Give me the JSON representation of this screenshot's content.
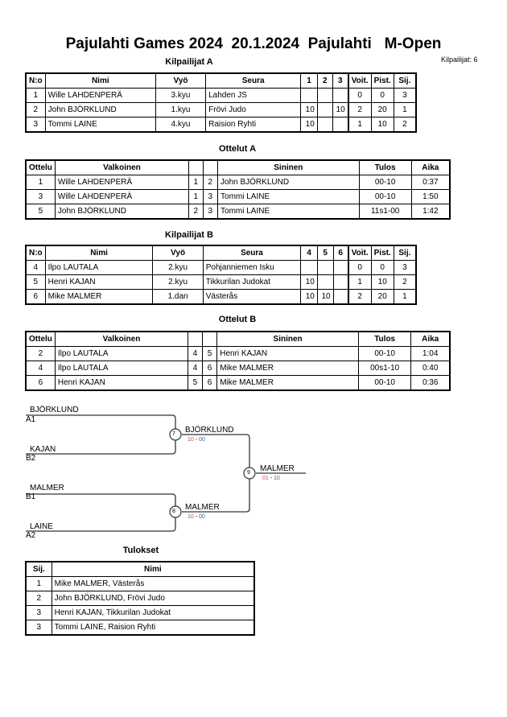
{
  "title": "Pajulahti Games 2024  20.1.2024  Pajulahti   M-Open",
  "competitor_count": "Kilpailijat: 6",
  "pool_a": {
    "title": "Kilpailijat A",
    "headers": [
      "N:o",
      "Nimi",
      "Vyö",
      "Seura",
      "1",
      "2",
      "3",
      "Voit.",
      "Pist.",
      "Sij."
    ],
    "rows": [
      [
        "1",
        "Wille LAHDENPERÄ",
        "3.kyu",
        "Lahden JS",
        "",
        "",
        "",
        "0",
        "0",
        "3"
      ],
      [
        "2",
        "John BJÖRKLUND",
        "1.kyu",
        "Frövi Judo",
        "10",
        "",
        "10",
        "2",
        "20",
        "1"
      ],
      [
        "3",
        "Tommi LAINE",
        "4.kyu",
        "Raision Ryhti",
        "10",
        "",
        "",
        "1",
        "10",
        "2"
      ]
    ]
  },
  "matches_a": {
    "title": "Ottelut A",
    "headers": [
      "Ottelu",
      "Valkoinen",
      "",
      "",
      "Sininen",
      "Tulos",
      "Aika"
    ],
    "rows": [
      [
        "1",
        "Wille LAHDENPERÄ",
        "1",
        "2",
        "John BJÖRKLUND",
        "00-10",
        "0:37"
      ],
      [
        "3",
        "Wille LAHDENPERÄ",
        "1",
        "3",
        "Tommi LAINE",
        "00-10",
        "1:50"
      ],
      [
        "5",
        "John BJÖRKLUND",
        "2",
        "3",
        "Tommi LAINE",
        "11s1-00",
        "1:42"
      ]
    ]
  },
  "pool_b": {
    "title": "Kilpailijat B",
    "headers": [
      "N:o",
      "Nimi",
      "Vyö",
      "Seura",
      "4",
      "5",
      "6",
      "Voit.",
      "Pist.",
      "Sij."
    ],
    "rows": [
      [
        "4",
        "Ilpo LAUTALA",
        "2.kyu",
        "Pohjanniemen Isku",
        "",
        "",
        "",
        "0",
        "0",
        "3"
      ],
      [
        "5",
        "Henri KAJAN",
        "2.kyu",
        "Tikkurilan Judokat",
        "10",
        "",
        "",
        "1",
        "10",
        "2"
      ],
      [
        "6",
        "Mike MALMER",
        "1.dan",
        "Västerås",
        "10",
        "10",
        "",
        "2",
        "20",
        "1"
      ]
    ]
  },
  "matches_b": {
    "title": "Ottelut B",
    "headers": [
      "Ottelu",
      "Valkoinen",
      "",
      "",
      "Sininen",
      "Tulos",
      "Aika"
    ],
    "rows": [
      [
        "2",
        "Ilpo LAUTALA",
        "4",
        "5",
        "Henri KAJAN",
        "00-10",
        "1:04"
      ],
      [
        "4",
        "Ilpo LAUTALA",
        "4",
        "6",
        "Mike MALMER",
        "00s1-10",
        "0:40"
      ],
      [
        "6",
        "Henri KAJAN",
        "5",
        "6",
        "Mike MALMER",
        "00-10",
        "0:36"
      ]
    ]
  },
  "bracket": {
    "entries": [
      {
        "name": "BJÖRKLUND",
        "seed": "A1"
      },
      {
        "name": "KAJAN",
        "seed": "B2"
      },
      {
        "name": "MALMER",
        "seed": "B1"
      },
      {
        "name": "LAINE",
        "seed": "A2"
      }
    ],
    "semis": [
      {
        "match": "7",
        "winner": "BJÖRKLUND",
        "score_a": "10",
        "score_b": "00"
      },
      {
        "match": "8",
        "winner": "MALMER",
        "score_a": "10",
        "score_b": "00"
      }
    ],
    "final": {
      "match": "9",
      "winner": "MALMER",
      "score_a": "01",
      "score_b": "10"
    },
    "colors": {
      "score_a": "#c0504d",
      "score_b": "#4060a0"
    }
  },
  "results": {
    "title": "Tulokset",
    "headers": [
      "Sij.",
      "Nimi"
    ],
    "rows": [
      [
        "1",
        "Mike MALMER, Västerås"
      ],
      [
        "2",
        "John BJÖRKLUND, Frövi Judo"
      ],
      [
        "3",
        "Henri KAJAN, Tikkurilan Judokat"
      ],
      [
        "3",
        "Tommi LAINE, Raision Ryhti"
      ]
    ]
  }
}
